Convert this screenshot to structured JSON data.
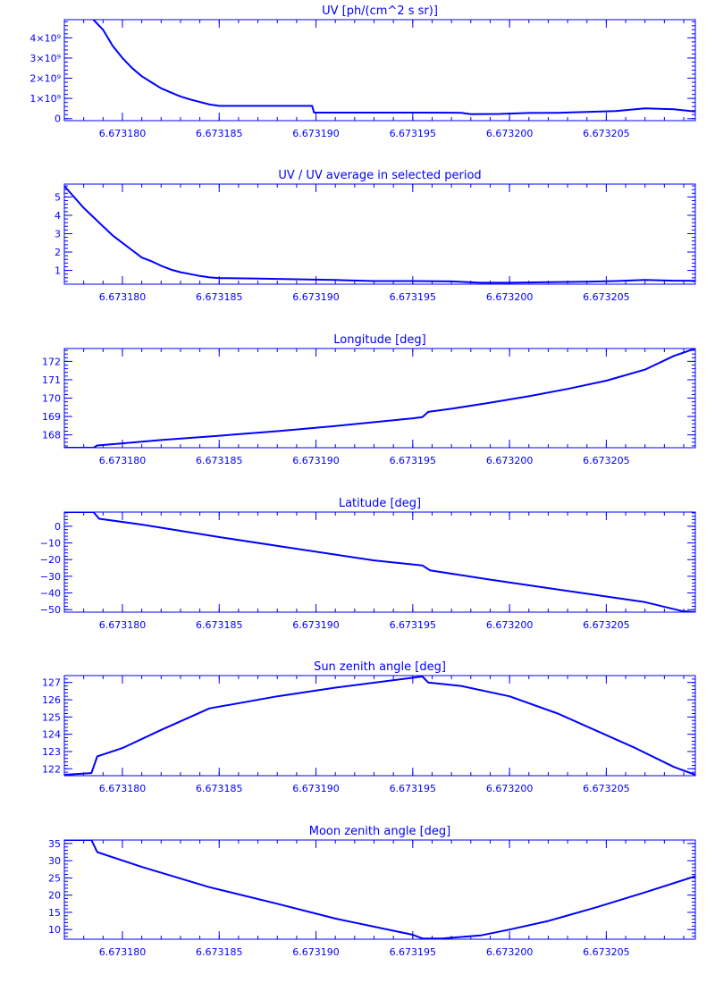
{
  "chart_data": [
    {
      "type": "line",
      "title": "UV [ph/(cm^2 s sr)]",
      "xlabel": "",
      "ylabel": "",
      "xlim": [
        6.673177,
        6.6732096
      ],
      "ylim": [
        -100000000,
        4900000000
      ],
      "x_ticks": [
        6.67318,
        6.673185,
        6.67319,
        6.673195,
        6.6732,
        6.673205
      ],
      "x_tick_labels": [
        "6.673180",
        "6.673185",
        "6.673190",
        "6.673195",
        "6.673200",
        "6.673205"
      ],
      "y_ticks": [
        0,
        1000000000,
        2000000000,
        3000000000,
        4000000000
      ],
      "y_tick_labels": [
        "0",
        "1×10⁹",
        "2×10⁹",
        "3×10⁹",
        "4×10⁹"
      ],
      "grid": false,
      "series": [
        {
          "x": [
            6.6731785,
            6.6731788,
            6.673179,
            6.6731795,
            6.67318,
            6.6731805,
            6.673181,
            6.6731815,
            6.673182,
            6.6731825,
            6.673183,
            6.6731835,
            6.6731845,
            6.673185,
            6.67318675,
            6.6731898,
            6.6731899,
            6.6731925,
            6.673195,
            6.6731975,
            6.673198,
            6.6731995,
            6.673201,
            6.6732025,
            6.673204,
            6.6732055,
            6.673207,
            6.6732085,
            6.6732096
          ],
          "y": [
            4900000000,
            4600000000,
            4400000000,
            3600000000,
            3000000000,
            2500000000,
            2100000000,
            1800000000,
            1500000000,
            1300000000,
            1100000000,
            950000000,
            700000000,
            630000000,
            630000000,
            630000000,
            300000000,
            300000000,
            300000000,
            290000000,
            220000000,
            230000000,
            280000000,
            290000000,
            330000000,
            380000000,
            510000000,
            460000000,
            350000000
          ]
        }
      ]
    },
    {
      "type": "line",
      "title": "UV / UV average in selected period",
      "xlabel": "",
      "ylabel": "",
      "xlim": [
        6.673177,
        6.6732096
      ],
      "ylim": [
        0.25,
        5.7
      ],
      "x_ticks": [
        6.67318,
        6.673185,
        6.67319,
        6.673195,
        6.6732,
        6.673205
      ],
      "x_tick_labels": [
        "6.673180",
        "6.673185",
        "6.673190",
        "6.673195",
        "6.673200",
        "6.673205"
      ],
      "y_ticks": [
        1,
        2,
        3,
        4,
        5
      ],
      "y_tick_labels": [
        "1",
        "2",
        "3",
        "4",
        "5"
      ],
      "grid": false,
      "series": [
        {
          "x": [
            6.673177,
            6.6731775,
            6.673178,
            6.6731785,
            6.673179,
            6.6731795,
            6.67318,
            6.6731805,
            6.673181,
            6.6731815,
            6.673182,
            6.6731825,
            6.673183,
            6.6731835,
            6.673184,
            6.6731845,
            6.673185,
            6.67318675,
            6.6731899,
            6.673191,
            6.673193,
            6.673195,
            6.673197,
            6.6731985,
            6.6732,
            6.673202,
            6.673204,
            6.6732055,
            6.673207,
            6.6732085,
            6.6732096
          ],
          "y": [
            5.6,
            5.0,
            4.4,
            3.9,
            3.4,
            2.9,
            2.5,
            2.1,
            1.7,
            1.5,
            1.25,
            1.05,
            0.9,
            0.8,
            0.7,
            0.62,
            0.58,
            0.56,
            0.5,
            0.48,
            0.42,
            0.42,
            0.4,
            0.33,
            0.33,
            0.36,
            0.38,
            0.42,
            0.48,
            0.44,
            0.43
          ]
        }
      ]
    },
    {
      "type": "line",
      "title": "Longitude [deg]",
      "xlabel": "",
      "ylabel": "",
      "xlim": [
        6.673177,
        6.6732096
      ],
      "ylim": [
        167.3,
        172.7
      ],
      "x_ticks": [
        6.67318,
        6.673185,
        6.67319,
        6.673195,
        6.6732,
        6.673205
      ],
      "x_tick_labels": [
        "6.673180",
        "6.673185",
        "6.673190",
        "6.673195",
        "6.673200",
        "6.673205"
      ],
      "y_ticks": [
        168,
        169,
        170,
        171,
        172
      ],
      "y_tick_labels": [
        "168",
        "169",
        "170",
        "171",
        "172"
      ],
      "grid": false,
      "series": [
        {
          "x": [
            6.673177,
            6.6731785,
            6.6731787,
            6.673182,
            6.673185,
            6.673188,
            6.673191,
            6.673195,
            6.6731955,
            6.6731958,
            6.673197,
            6.673199,
            6.673201,
            6.673203,
            6.673205,
            6.673207,
            6.6732085,
            6.6732096
          ],
          "y": [
            167.3,
            167.3,
            167.42,
            167.72,
            167.95,
            168.2,
            168.48,
            168.9,
            168.97,
            169.25,
            169.42,
            169.75,
            170.1,
            170.5,
            170.95,
            171.55,
            172.3,
            172.7
          ]
        }
      ]
    },
    {
      "type": "line",
      "title": "Latitude [deg]",
      "xlabel": "",
      "ylabel": "",
      "xlim": [
        6.673177,
        6.6732096
      ],
      "ylim": [
        -51.5,
        8.5
      ],
      "x_ticks": [
        6.67318,
        6.673185,
        6.67319,
        6.673195,
        6.6732,
        6.673205
      ],
      "x_tick_labels": [
        "6.673180",
        "6.673185",
        "6.673190",
        "6.673195",
        "6.673200",
        "6.673205"
      ],
      "y_ticks": [
        -50,
        -40,
        -30,
        -20,
        -10,
        0
      ],
      "y_tick_labels": [
        "−50",
        "−40",
        "−30",
        "−20",
        "−10",
        "0"
      ],
      "grid": false,
      "series": [
        {
          "x": [
            6.673177,
            6.6731785,
            6.6731788,
            6.673181,
            6.673185,
            6.673189,
            6.673193,
            6.6731955,
            6.6731959,
            6.673199,
            6.673203,
            6.673207,
            6.6732089,
            6.6732096
          ],
          "y": [
            8.5,
            8.5,
            4.5,
            1.0,
            -6.5,
            -13.5,
            -20.5,
            -23.5,
            -26.5,
            -32.0,
            -38.8,
            -45.5,
            -50.8,
            -51.5
          ]
        }
      ]
    },
    {
      "type": "line",
      "title": "Sun zenith angle [deg]",
      "xlabel": "",
      "ylabel": "",
      "xlim": [
        6.673177,
        6.6732096
      ],
      "ylim": [
        121.6,
        127.4
      ],
      "x_ticks": [
        6.67318,
        6.673185,
        6.67319,
        6.673195,
        6.6732,
        6.673205
      ],
      "x_tick_labels": [
        "6.673180",
        "6.673185",
        "6.673190",
        "6.673195",
        "6.673200",
        "6.673205"
      ],
      "y_ticks": [
        122,
        123,
        124,
        125,
        126,
        127
      ],
      "y_tick_labels": [
        "122",
        "123",
        "124",
        "125",
        "126",
        "127"
      ],
      "grid": false,
      "series": [
        {
          "x": [
            6.673177,
            6.6731784,
            6.6731787,
            6.67318,
            6.673182,
            6.6731845,
            6.673188,
            6.673191,
            6.6731955,
            6.6731958,
            6.6731975,
            6.6732,
            6.6732025,
            6.6732045,
            6.6732065,
            6.6732085,
            6.6732096
          ],
          "y": [
            121.65,
            121.75,
            122.72,
            123.2,
            124.25,
            125.5,
            126.2,
            126.7,
            127.35,
            127.0,
            126.8,
            126.2,
            125.2,
            124.2,
            123.2,
            122.1,
            121.65
          ]
        }
      ]
    },
    {
      "type": "line",
      "title": "Moon zenith angle [deg]",
      "xlabel": "",
      "ylabel": "",
      "xlim": [
        6.673177,
        6.6732096
      ],
      "ylim": [
        7.2,
        36
      ],
      "x_ticks": [
        6.67318,
        6.673185,
        6.67319,
        6.673195,
        6.6732,
        6.673205
      ],
      "x_tick_labels": [
        "6.673180",
        "6.673185",
        "6.673190",
        "6.673195",
        "6.673200",
        "6.673205"
      ],
      "y_ticks": [
        10,
        15,
        20,
        25,
        30,
        35
      ],
      "y_tick_labels": [
        "10",
        "15",
        "20",
        "25",
        "30",
        "35"
      ],
      "grid": false,
      "series": [
        {
          "x": [
            6.673177,
            6.6731784,
            6.6731787,
            6.673181,
            6.6731845,
            6.673188,
            6.673191,
            6.673195,
            6.6731955,
            6.6731965,
            6.6731985,
            6.6732,
            6.673202,
            6.6732045,
            6.673207,
            6.6732096
          ],
          "y": [
            36,
            36,
            32.5,
            28.2,
            22.3,
            17.5,
            13.2,
            8.5,
            7.4,
            7.4,
            8.3,
            10.0,
            12.5,
            16.5,
            20.8,
            25.5
          ]
        }
      ]
    }
  ],
  "colors": {
    "accent": "#0000ff",
    "background": "#ffffff"
  }
}
